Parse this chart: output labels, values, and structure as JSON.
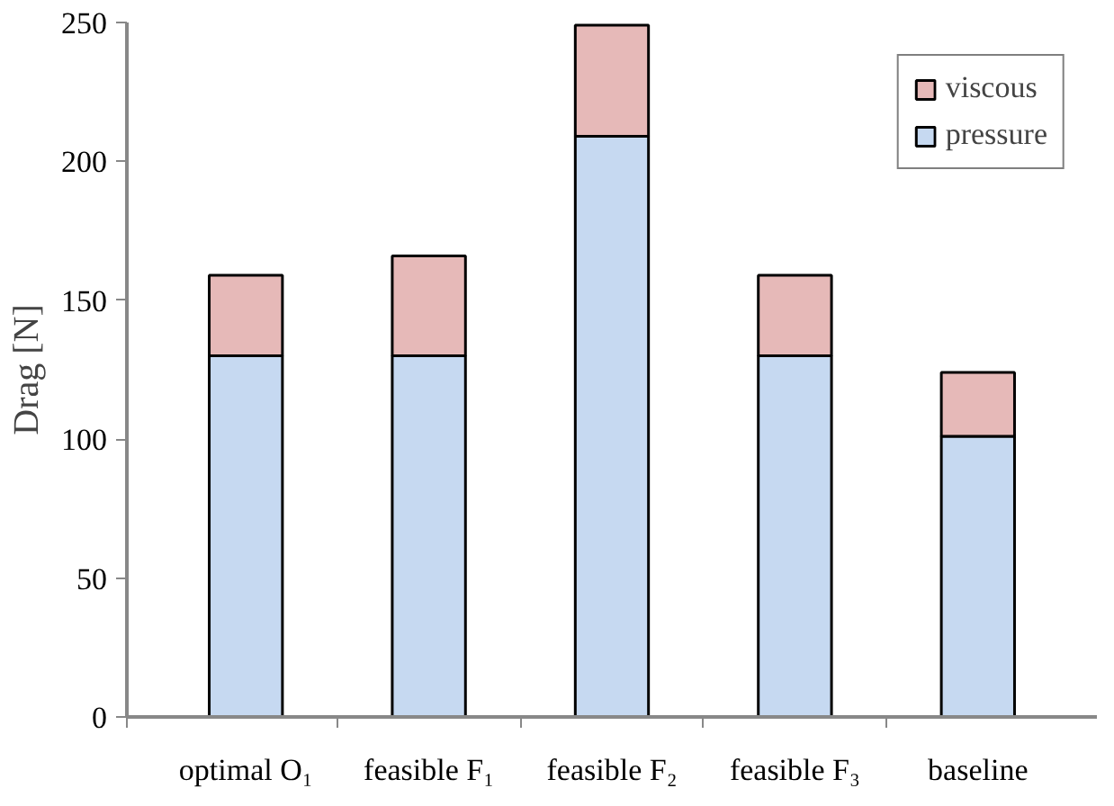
{
  "chart_data": {
    "type": "bar",
    "stacked": true,
    "ylabel": "Drag [N]",
    "categories": [
      "optimal O₁",
      "feasible F₁",
      "feasible F₂",
      "feasible F₃",
      "baseline"
    ],
    "series": [
      {
        "name": "pressure",
        "color": "#c6d9f1",
        "values": [
          130,
          130,
          209,
          130,
          101
        ]
      },
      {
        "name": "viscous",
        "color": "#e6b9b8",
        "values": [
          29,
          36,
          40,
          29,
          23
        ]
      }
    ],
    "ylim": [
      0,
      250
    ],
    "yticks": [
      0,
      50,
      100,
      150,
      200,
      250
    ],
    "grid": false,
    "legend": "top right"
  }
}
